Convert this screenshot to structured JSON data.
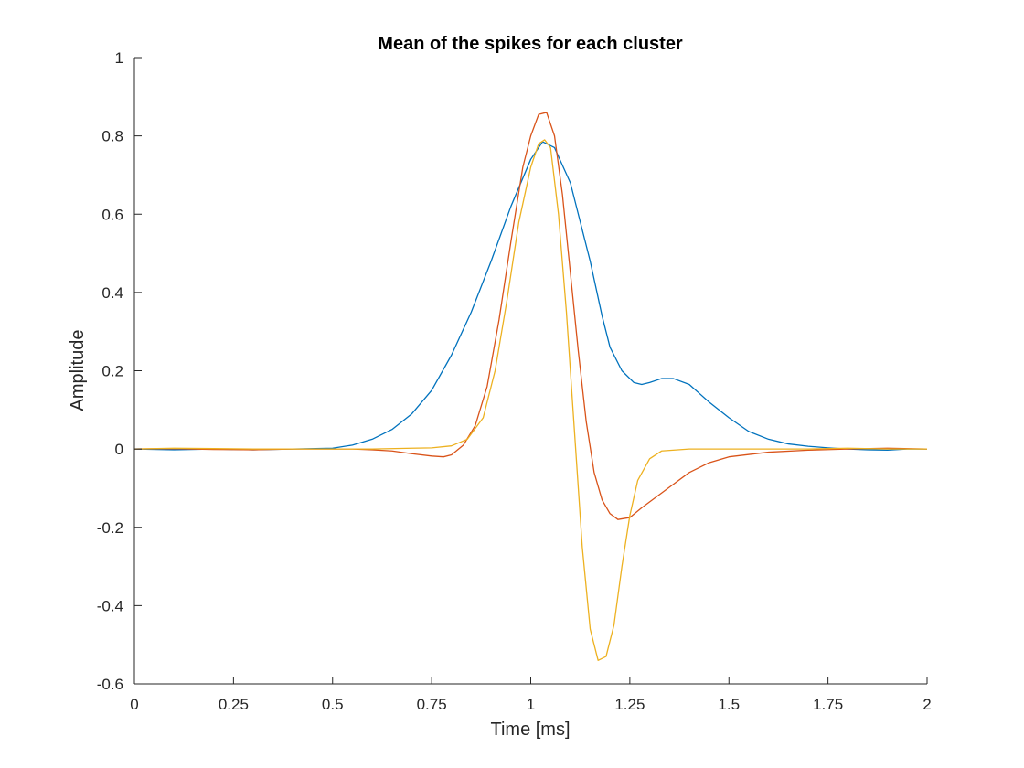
{
  "chart_data": {
    "type": "line",
    "title": "Mean of the spikes for each cluster",
    "xlabel": "Time [ms]",
    "ylabel": "Amplitude",
    "xlim": [
      0,
      2
    ],
    "ylim": [
      -0.6,
      1
    ],
    "xticks": [
      0,
      0.25,
      0.5,
      0.75,
      1,
      1.25,
      1.5,
      1.75,
      2
    ],
    "xtick_labels": [
      "0",
      "0.25",
      "0.5",
      "0.75",
      "1",
      "1.25",
      "1.5",
      "1.75",
      "2"
    ],
    "yticks": [
      -0.6,
      -0.4,
      -0.2,
      0,
      0.2,
      0.4,
      0.6,
      0.8,
      1
    ],
    "ytick_labels": [
      "-0.6",
      "-0.4",
      "-0.2",
      "0",
      "0.2",
      "0.4",
      "0.6",
      "0.8",
      "1"
    ],
    "grid": false,
    "series": [
      {
        "color": "#0072BD",
        "points": [
          [
            0,
            0
          ],
          [
            0.1,
            -0.002
          ],
          [
            0.2,
            0
          ],
          [
            0.3,
            -0.002
          ],
          [
            0.4,
            0
          ],
          [
            0.5,
            0.002
          ],
          [
            0.55,
            0.01
          ],
          [
            0.6,
            0.025
          ],
          [
            0.65,
            0.05
          ],
          [
            0.7,
            0.09
          ],
          [
            0.75,
            0.15
          ],
          [
            0.8,
            0.24
          ],
          [
            0.85,
            0.35
          ],
          [
            0.9,
            0.48
          ],
          [
            0.95,
            0.62
          ],
          [
            1.0,
            0.74
          ],
          [
            1.03,
            0.785
          ],
          [
            1.06,
            0.77
          ],
          [
            1.1,
            0.68
          ],
          [
            1.15,
            0.48
          ],
          [
            1.18,
            0.34
          ],
          [
            1.2,
            0.26
          ],
          [
            1.23,
            0.2
          ],
          [
            1.26,
            0.17
          ],
          [
            1.28,
            0.165
          ],
          [
            1.3,
            0.17
          ],
          [
            1.33,
            0.18
          ],
          [
            1.36,
            0.18
          ],
          [
            1.4,
            0.165
          ],
          [
            1.45,
            0.12
          ],
          [
            1.5,
            0.08
          ],
          [
            1.55,
            0.045
          ],
          [
            1.6,
            0.025
          ],
          [
            1.65,
            0.013
          ],
          [
            1.7,
            0.007
          ],
          [
            1.75,
            0.003
          ],
          [
            1.8,
            0
          ],
          [
            1.85,
            -0.002
          ],
          [
            1.9,
            -0.003
          ],
          [
            1.95,
            0
          ],
          [
            2,
            0
          ]
        ]
      },
      {
        "color": "#D95319",
        "points": [
          [
            0,
            0
          ],
          [
            0.1,
            0.001
          ],
          [
            0.2,
            -0.001
          ],
          [
            0.3,
            -0.002
          ],
          [
            0.4,
            0
          ],
          [
            0.5,
            0
          ],
          [
            0.55,
            0
          ],
          [
            0.6,
            -0.002
          ],
          [
            0.65,
            -0.005
          ],
          [
            0.7,
            -0.012
          ],
          [
            0.75,
            -0.018
          ],
          [
            0.78,
            -0.02
          ],
          [
            0.8,
            -0.015
          ],
          [
            0.83,
            0.01
          ],
          [
            0.86,
            0.06
          ],
          [
            0.89,
            0.16
          ],
          [
            0.92,
            0.33
          ],
          [
            0.95,
            0.53
          ],
          [
            0.98,
            0.72
          ],
          [
            1.0,
            0.8
          ],
          [
            1.02,
            0.855
          ],
          [
            1.04,
            0.86
          ],
          [
            1.06,
            0.8
          ],
          [
            1.08,
            0.65
          ],
          [
            1.1,
            0.45
          ],
          [
            1.12,
            0.25
          ],
          [
            1.14,
            0.07
          ],
          [
            1.16,
            -0.06
          ],
          [
            1.18,
            -0.13
          ],
          [
            1.2,
            -0.165
          ],
          [
            1.22,
            -0.18
          ],
          [
            1.25,
            -0.175
          ],
          [
            1.28,
            -0.15
          ],
          [
            1.32,
            -0.12
          ],
          [
            1.36,
            -0.09
          ],
          [
            1.4,
            -0.06
          ],
          [
            1.45,
            -0.035
          ],
          [
            1.5,
            -0.02
          ],
          [
            1.6,
            -0.008
          ],
          [
            1.7,
            -0.003
          ],
          [
            1.8,
            0
          ],
          [
            1.9,
            0.002
          ],
          [
            2,
            0
          ]
        ]
      },
      {
        "color": "#EDB120",
        "points": [
          [
            0,
            0
          ],
          [
            0.1,
            0.002
          ],
          [
            0.2,
            0.001
          ],
          [
            0.3,
            0
          ],
          [
            0.4,
            0
          ],
          [
            0.5,
            0
          ],
          [
            0.6,
            0
          ],
          [
            0.7,
            0.002
          ],
          [
            0.75,
            0.003
          ],
          [
            0.8,
            0.008
          ],
          [
            0.84,
            0.025
          ],
          [
            0.88,
            0.08
          ],
          [
            0.91,
            0.2
          ],
          [
            0.94,
            0.38
          ],
          [
            0.97,
            0.58
          ],
          [
            1.0,
            0.72
          ],
          [
            1.02,
            0.78
          ],
          [
            1.035,
            0.79
          ],
          [
            1.05,
            0.77
          ],
          [
            1.07,
            0.6
          ],
          [
            1.09,
            0.35
          ],
          [
            1.11,
            0.05
          ],
          [
            1.13,
            -0.25
          ],
          [
            1.15,
            -0.46
          ],
          [
            1.17,
            -0.54
          ],
          [
            1.19,
            -0.53
          ],
          [
            1.21,
            -0.45
          ],
          [
            1.23,
            -0.3
          ],
          [
            1.25,
            -0.17
          ],
          [
            1.27,
            -0.08
          ],
          [
            1.3,
            -0.025
          ],
          [
            1.33,
            -0.005
          ],
          [
            1.4,
            0
          ],
          [
            1.5,
            0
          ],
          [
            1.6,
            0
          ],
          [
            1.7,
            0
          ],
          [
            1.8,
            0.002
          ],
          [
            1.9,
            0
          ],
          [
            2,
            0
          ]
        ]
      }
    ]
  }
}
